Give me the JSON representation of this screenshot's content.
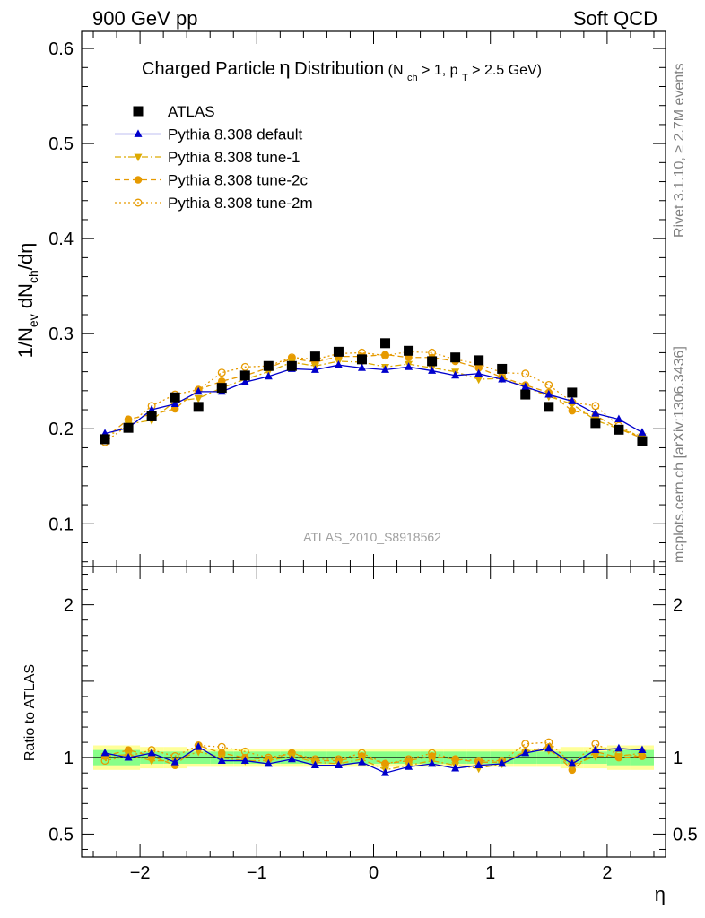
{
  "header": {
    "left": "900 GeV pp",
    "right": "Soft QCD"
  },
  "side_labels": {
    "rivet": "Rivet 3.1.10, ≥ 2.7M events",
    "mcplots": "mcplots.cern.ch [arXiv:1306.3436]"
  },
  "chart_data": [
    {
      "type": "scatter",
      "panel": "main",
      "title": {
        "main": "Charged Particle",
        "eta": "η",
        "main_suffix": " Distribution",
        "cut_prefix": "(N",
        "cut_sub1": "ch",
        "cut_mid": " > 1, p",
        "cut_sub2": "T",
        "cut_suffix": " > 2.5 GeV)"
      },
      "ylabel": {
        "p1": "1/N",
        "s1": "ev",
        "p2": " dN",
        "s2": "ch",
        "p3": "/dη"
      },
      "watermark": "ATLAS_2010_S8918562",
      "xlim": [
        -2.5,
        2.5
      ],
      "ylim": [
        0.055,
        0.618
      ],
      "yticks": [
        0.1,
        0.2,
        0.3,
        0.4,
        0.5,
        0.6
      ],
      "ytick_labels": [
        "0.1",
        "0.2",
        "0.3",
        "0.4",
        "0.5",
        "0.6"
      ],
      "x": [
        -2.3,
        -2.1,
        -1.9,
        -1.7,
        -1.5,
        -1.3,
        -1.1,
        -0.9,
        -0.7,
        -0.5,
        -0.3,
        -0.1,
        0.1,
        0.3,
        0.5,
        0.7,
        0.9,
        1.1,
        1.3,
        1.5,
        1.7,
        1.9,
        2.1,
        2.3
      ],
      "series": [
        {
          "name": "ATLAS",
          "color": "#000000",
          "marker": "square",
          "values": [
            0.189,
            0.201,
            0.213,
            0.233,
            0.223,
            0.243,
            0.256,
            0.266,
            0.266,
            0.276,
            0.281,
            0.273,
            0.29,
            0.282,
            0.271,
            0.275,
            0.272,
            0.263,
            0.236,
            0.223,
            0.238,
            0.206,
            0.199,
            0.187
          ]
        },
        {
          "name": "Pythia 8.308 default",
          "color": "#0000cc",
          "marker": "triangle-up",
          "line": "solid",
          "values": [
            0.195,
            0.201,
            0.22,
            0.226,
            0.239,
            0.239,
            0.249,
            0.255,
            0.263,
            0.262,
            0.267,
            0.264,
            0.262,
            0.265,
            0.261,
            0.256,
            0.258,
            0.252,
            0.244,
            0.236,
            0.229,
            0.216,
            0.21,
            0.196
          ]
        },
        {
          "name": "Pythia 8.308 tune-1",
          "color": "#ddaa00",
          "marker": "triangle-down",
          "line": "dashdot",
          "values": [
            0.19,
            0.205,
            0.209,
            0.229,
            0.232,
            0.243,
            0.252,
            0.26,
            0.27,
            0.266,
            0.271,
            0.27,
            0.265,
            0.268,
            0.264,
            0.26,
            0.252,
            0.253,
            0.244,
            0.234,
            0.226,
            0.209,
            0.2,
            0.192
          ]
        },
        {
          "name": "Pythia 8.308 tune-2c",
          "color": "#e69a00",
          "marker": "circle",
          "line": "dashed",
          "values": [
            0.19,
            0.21,
            0.215,
            0.221,
            0.241,
            0.25,
            0.256,
            0.264,
            0.274,
            0.27,
            0.276,
            0.276,
            0.278,
            0.275,
            0.275,
            0.271,
            0.264,
            0.254,
            0.246,
            0.238,
            0.219,
            0.214,
            0.2,
            0.19
          ]
        },
        {
          "name": "Pythia 8.308 tune-2m",
          "color": "#e69a00",
          "marker": "circle-open",
          "line": "dotted",
          "values": [
            0.186,
            0.204,
            0.224,
            0.236,
            0.241,
            0.259,
            0.265,
            0.266,
            0.275,
            0.273,
            0.279,
            0.28,
            0.277,
            0.281,
            0.28,
            0.273,
            0.268,
            0.259,
            0.258,
            0.246,
            0.228,
            0.224,
            0.203,
            0.19
          ]
        }
      ],
      "legend_position": "top-left"
    },
    {
      "type": "scatter",
      "panel": "ratio",
      "ylabel": "Ratio to ATLAS",
      "xlabel": "η",
      "xlim": [
        -2.5,
        2.5
      ],
      "ylim": [
        0.35,
        2.25
      ],
      "yticks": [
        0.5,
        1,
        2
      ],
      "ytick_labels": [
        "0.5",
        "1",
        "2"
      ],
      "xticks": [
        -2,
        -1,
        0,
        1,
        2
      ],
      "xtick_labels": [
        "−2",
        "−1",
        "0",
        "1",
        "2"
      ],
      "x": [
        -2.3,
        -2.1,
        -1.9,
        -1.7,
        -1.5,
        -1.3,
        -1.1,
        -0.9,
        -0.7,
        -0.5,
        -0.3,
        -0.1,
        0.1,
        0.3,
        0.5,
        0.7,
        0.9,
        1.1,
        1.3,
        1.5,
        1.7,
        1.9,
        2.1,
        2.3
      ],
      "band_inner": [
        0.05,
        0.05,
        0.04,
        0.04,
        0.04,
        0.04,
        0.04,
        0.04,
        0.04,
        0.04,
        0.04,
        0.04,
        0.04,
        0.04,
        0.04,
        0.04,
        0.04,
        0.04,
        0.04,
        0.04,
        0.04,
        0.04,
        0.05,
        0.05
      ],
      "band_outer": [
        0.08,
        0.08,
        0.07,
        0.07,
        0.06,
        0.06,
        0.06,
        0.06,
        0.06,
        0.06,
        0.06,
        0.06,
        0.06,
        0.06,
        0.06,
        0.06,
        0.06,
        0.06,
        0.06,
        0.06,
        0.07,
        0.07,
        0.08,
        0.08
      ],
      "series": [
        {
          "name": "Pythia 8.308 default",
          "color": "#0000cc",
          "marker": "triangle-up",
          "line": "solid",
          "values": [
            1.03,
            1.0,
            1.03,
            0.97,
            1.07,
            0.98,
            0.98,
            0.96,
            0.99,
            0.95,
            0.95,
            0.97,
            0.9,
            0.94,
            0.96,
            0.93,
            0.95,
            0.96,
            1.03,
            1.06,
            0.96,
            1.05,
            1.06,
            1.05
          ]
        },
        {
          "name": "Pythia 8.308 tune-1",
          "color": "#ddaa00",
          "marker": "triangle-down",
          "line": "dashdot",
          "values": [
            1.01,
            1.02,
            0.98,
            0.98,
            1.04,
            1.0,
            0.98,
            0.98,
            1.01,
            0.97,
            0.96,
            0.99,
            0.92,
            0.95,
            0.98,
            0.95,
            0.93,
            0.96,
            1.04,
            1.05,
            0.95,
            1.01,
            1.01,
            1.03
          ]
        },
        {
          "name": "Pythia 8.308 tune-2c",
          "color": "#e69a00",
          "marker": "circle",
          "line": "dashed",
          "values": [
            1.01,
            1.05,
            1.01,
            0.95,
            1.08,
            1.03,
            1.0,
            0.99,
            1.03,
            0.98,
            0.98,
            1.01,
            0.96,
            0.98,
            1.01,
            0.99,
            0.97,
            0.97,
            1.04,
            1.07,
            0.92,
            1.04,
            1.0,
            1.01
          ]
        },
        {
          "name": "Pythia 8.308 tune-2m",
          "color": "#e69a00",
          "marker": "circle-open",
          "line": "dotted",
          "values": [
            0.98,
            1.01,
            1.05,
            1.01,
            1.08,
            1.07,
            1.04,
            1.0,
            1.03,
            0.99,
            0.99,
            1.03,
            0.96,
            0.99,
            1.03,
            0.99,
            0.98,
            0.98,
            1.09,
            1.1,
            0.96,
            1.09,
            1.02,
            1.01
          ]
        }
      ]
    }
  ]
}
